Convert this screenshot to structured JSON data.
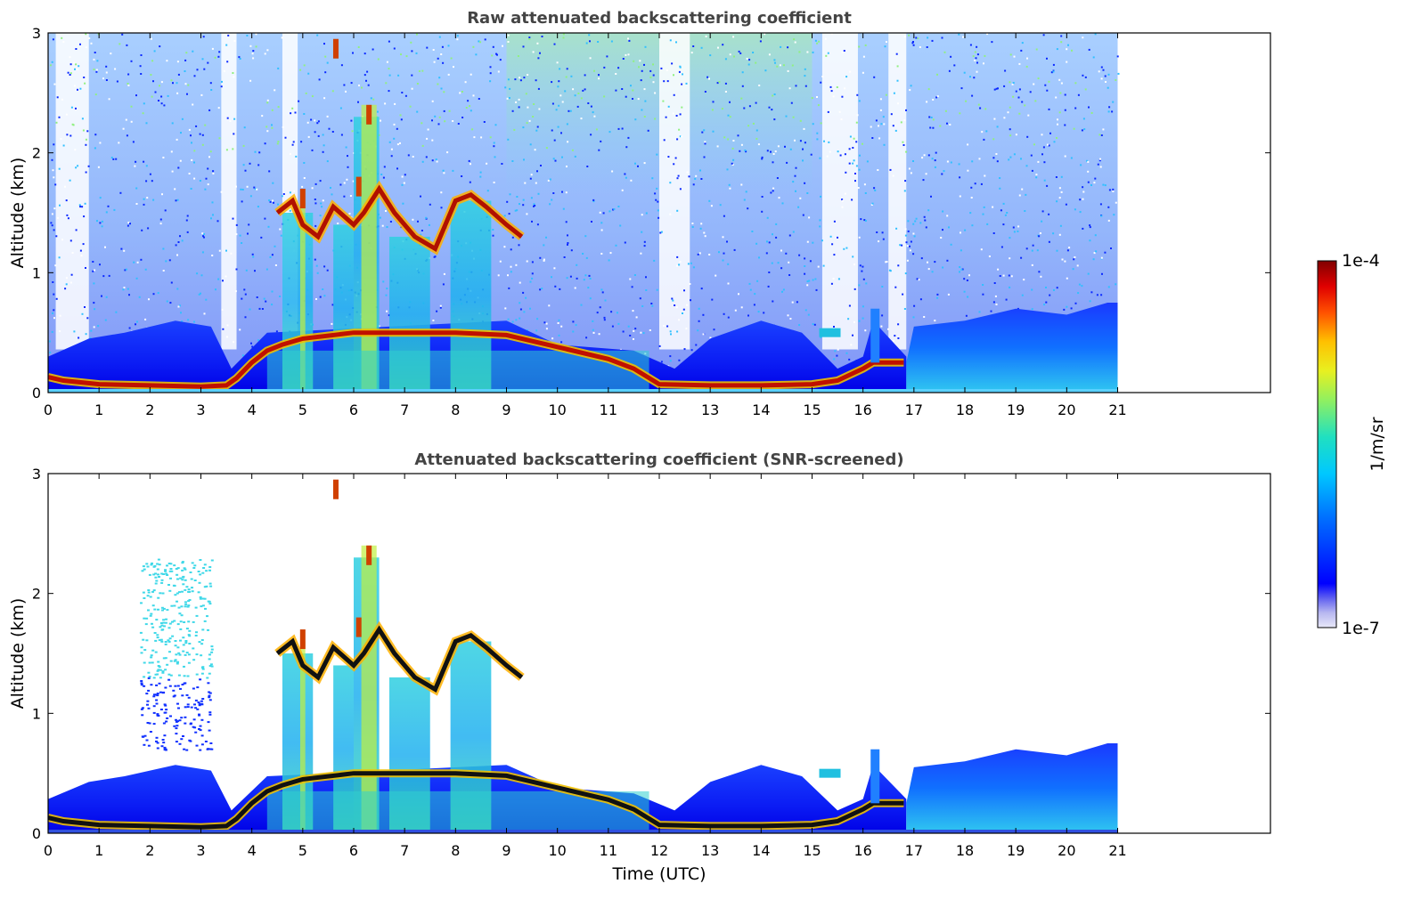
{
  "chart_data": [
    {
      "type": "heatmap",
      "title": "Raw attenuated backscattering coefficient",
      "xlabel": "",
      "ylabel": "Altitude (km)",
      "xlim": [
        0,
        24
      ],
      "ylim": [
        0,
        3
      ],
      "x_ticks": [
        "0",
        "1",
        "2",
        "3",
        "4",
        "5",
        "6",
        "7",
        "8",
        "9",
        "10",
        "11",
        "12",
        "13",
        "14",
        "15",
        "16",
        "17",
        "18",
        "19",
        "20",
        "21"
      ],
      "y_ticks": [
        "0",
        "1",
        "2",
        "3"
      ],
      "data_extent_hours": [
        0,
        21
      ],
      "screened": false
    },
    {
      "type": "heatmap",
      "title": "Attenuated backscattering coefficient (SNR-screened)",
      "xlabel": "Time (UTC)",
      "ylabel": "Altitude (km)",
      "xlim": [
        0,
        24
      ],
      "ylim": [
        0,
        3
      ],
      "x_ticks": [
        "0",
        "1",
        "2",
        "3",
        "4",
        "5",
        "6",
        "7",
        "8",
        "9",
        "10",
        "11",
        "12",
        "13",
        "14",
        "15",
        "16",
        "17",
        "18",
        "19",
        "20",
        "21"
      ],
      "y_ticks": [
        "0",
        "1",
        "2",
        "3"
      ],
      "data_extent_hours": [
        0,
        21
      ],
      "screened": true
    }
  ],
  "colorbar": {
    "label": "1/m/sr",
    "max_label": "1e-4",
    "min_label": "1e-7",
    "scale": "log"
  },
  "features": {
    "boundary_layer_top": [
      [
        0,
        0.13
      ],
      [
        0.3,
        0.1
      ],
      [
        1,
        0.07
      ],
      [
        2,
        0.06
      ],
      [
        3,
        0.05
      ],
      [
        3.5,
        0.06
      ],
      [
        3.7,
        0.12
      ],
      [
        4,
        0.25
      ],
      [
        4.3,
        0.35
      ],
      [
        4.6,
        0.4
      ],
      [
        5,
        0.45
      ],
      [
        6,
        0.5
      ],
      [
        7,
        0.5
      ],
      [
        8,
        0.5
      ],
      [
        9,
        0.48
      ],
      [
        9.3,
        0.45
      ],
      [
        10,
        0.38
      ],
      [
        11,
        0.28
      ],
      [
        11.5,
        0.2
      ],
      [
        12,
        0.07
      ],
      [
        13,
        0.06
      ],
      [
        14,
        0.06
      ],
      [
        15,
        0.07
      ],
      [
        15.5,
        0.1
      ],
      [
        16,
        0.2
      ],
      [
        16.2,
        0.25
      ],
      [
        16.8,
        0.25
      ]
    ],
    "cloud_layer": [
      [
        4.5,
        1.5
      ],
      [
        4.8,
        1.6
      ],
      [
        5,
        1.4
      ],
      [
        5.3,
        1.3
      ],
      [
        5.6,
        1.55
      ],
      [
        6,
        1.4
      ],
      [
        6.2,
        1.5
      ],
      [
        6.5,
        1.7
      ],
      [
        6.8,
        1.5
      ],
      [
        7.2,
        1.3
      ],
      [
        7.6,
        1.2
      ],
      [
        8,
        1.6
      ],
      [
        8.3,
        1.65
      ],
      [
        8.6,
        1.55
      ],
      [
        9,
        1.4
      ],
      [
        9.3,
        1.3
      ]
    ],
    "cloud_spikes": [
      [
        5.65,
        2.95
      ],
      [
        6.3,
        2.4
      ],
      [
        5,
        1.7
      ],
      [
        6.1,
        1.8
      ]
    ],
    "small_patch": [
      15.35,
      0.5
    ]
  }
}
